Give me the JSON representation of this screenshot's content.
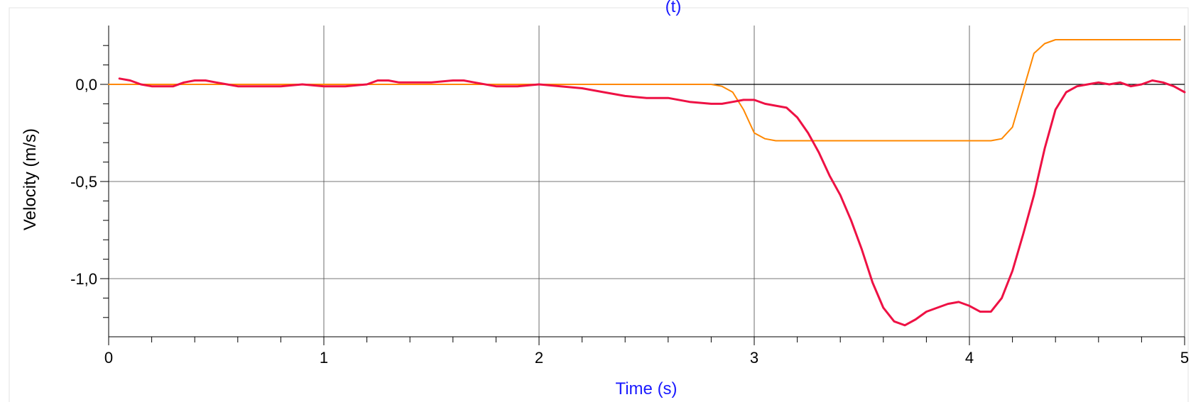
{
  "chart_data": {
    "type": "line",
    "title": "(t)",
    "xlabel": "Time (s)",
    "ylabel": "Velocity (m/s)",
    "xlim": [
      0,
      5
    ],
    "ylim": [
      -1.3,
      0.3
    ],
    "x_ticks": [
      0,
      1,
      2,
      3,
      4,
      5
    ],
    "x_tick_labels": [
      "0",
      "1",
      "2",
      "3",
      "4",
      "5"
    ],
    "y_ticks": [
      0.0,
      -0.5,
      -1.0
    ],
    "y_tick_labels": [
      "0,0",
      "-0,5",
      "-1,0"
    ],
    "grid": true,
    "series": [
      {
        "color": "#ff8800",
        "points": [
          [
            0.0,
            0.0
          ],
          [
            2.8,
            0.0
          ],
          [
            2.85,
            -0.01
          ],
          [
            2.9,
            -0.04
          ],
          [
            2.95,
            -0.13
          ],
          [
            3.0,
            -0.25
          ],
          [
            3.05,
            -0.28
          ],
          [
            3.1,
            -0.29
          ],
          [
            4.1,
            -0.29
          ],
          [
            4.15,
            -0.28
          ],
          [
            4.2,
            -0.22
          ],
          [
            4.25,
            -0.03
          ],
          [
            4.3,
            0.16
          ],
          [
            4.35,
            0.21
          ],
          [
            4.4,
            0.23
          ],
          [
            4.98,
            0.23
          ]
        ]
      },
      {
        "color": "#ee1144",
        "points": [
          [
            0.05,
            0.03
          ],
          [
            0.1,
            0.02
          ],
          [
            0.15,
            0.0
          ],
          [
            0.2,
            -0.01
          ],
          [
            0.25,
            -0.01
          ],
          [
            0.3,
            -0.01
          ],
          [
            0.35,
            0.01
          ],
          [
            0.4,
            0.02
          ],
          [
            0.45,
            0.02
          ],
          [
            0.5,
            0.01
          ],
          [
            0.55,
            0.0
          ],
          [
            0.6,
            -0.01
          ],
          [
            0.7,
            -0.01
          ],
          [
            0.8,
            -0.01
          ],
          [
            0.9,
            0.0
          ],
          [
            1.0,
            -0.01
          ],
          [
            1.1,
            -0.01
          ],
          [
            1.2,
            0.0
          ],
          [
            1.25,
            0.02
          ],
          [
            1.3,
            0.02
          ],
          [
            1.35,
            0.01
          ],
          [
            1.4,
            0.01
          ],
          [
            1.5,
            0.01
          ],
          [
            1.6,
            0.02
          ],
          [
            1.65,
            0.02
          ],
          [
            1.7,
            0.01
          ],
          [
            1.8,
            -0.01
          ],
          [
            1.9,
            -0.01
          ],
          [
            2.0,
            0.0
          ],
          [
            2.1,
            -0.01
          ],
          [
            2.2,
            -0.02
          ],
          [
            2.3,
            -0.04
          ],
          [
            2.4,
            -0.06
          ],
          [
            2.5,
            -0.07
          ],
          [
            2.6,
            -0.07
          ],
          [
            2.7,
            -0.09
          ],
          [
            2.8,
            -0.1
          ],
          [
            2.85,
            -0.1
          ],
          [
            2.9,
            -0.09
          ],
          [
            2.95,
            -0.08
          ],
          [
            3.0,
            -0.08
          ],
          [
            3.05,
            -0.1
          ],
          [
            3.1,
            -0.11
          ],
          [
            3.15,
            -0.12
          ],
          [
            3.2,
            -0.17
          ],
          [
            3.25,
            -0.25
          ],
          [
            3.3,
            -0.35
          ],
          [
            3.35,
            -0.47
          ],
          [
            3.4,
            -0.57
          ],
          [
            3.45,
            -0.7
          ],
          [
            3.5,
            -0.85
          ],
          [
            3.55,
            -1.02
          ],
          [
            3.6,
            -1.15
          ],
          [
            3.65,
            -1.22
          ],
          [
            3.7,
            -1.24
          ],
          [
            3.75,
            -1.21
          ],
          [
            3.8,
            -1.17
          ],
          [
            3.85,
            -1.15
          ],
          [
            3.9,
            -1.13
          ],
          [
            3.95,
            -1.12
          ],
          [
            4.0,
            -1.14
          ],
          [
            4.05,
            -1.17
          ],
          [
            4.1,
            -1.17
          ],
          [
            4.15,
            -1.1
          ],
          [
            4.2,
            -0.96
          ],
          [
            4.25,
            -0.77
          ],
          [
            4.3,
            -0.57
          ],
          [
            4.35,
            -0.33
          ],
          [
            4.4,
            -0.13
          ],
          [
            4.45,
            -0.04
          ],
          [
            4.5,
            -0.01
          ],
          [
            4.55,
            0.0
          ],
          [
            4.6,
            0.01
          ],
          [
            4.65,
            0.0
          ],
          [
            4.7,
            0.01
          ],
          [
            4.75,
            -0.01
          ],
          [
            4.8,
            0.0
          ],
          [
            4.85,
            0.02
          ],
          [
            4.9,
            0.01
          ],
          [
            4.95,
            -0.01
          ],
          [
            5.0,
            -0.04
          ]
        ]
      }
    ]
  }
}
